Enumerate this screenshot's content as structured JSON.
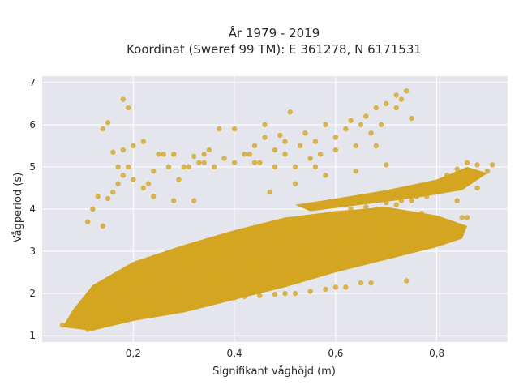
{
  "chart_data": {
    "type": "scatter",
    "title_line1": "År 1979 - 2019",
    "title_line2": "Koordinat (Sweref 99 TM): E 361278, N 6171531",
    "xlabel": "Signifikant våghöjd (m)",
    "ylabel": "Vågperiod (s)",
    "xlim": [
      0.02,
      0.94
    ],
    "ylim": [
      0.85,
      7.15
    ],
    "xticks": [
      0.2,
      0.4,
      0.6,
      0.8
    ],
    "xtick_labels": [
      "0,2",
      "0,4",
      "0,6",
      "0,8"
    ],
    "yticks": [
      1,
      2,
      3,
      4,
      5,
      6,
      7
    ],
    "ytick_labels": [
      "1",
      "2",
      "3",
      "4",
      "5",
      "6",
      "7"
    ],
    "grid": true,
    "plot_background": "#e5e5ee",
    "point_color": "#d4a520",
    "series": [
      {
        "name": "",
        "points": [
          [
            0.06,
            1.25
          ],
          [
            0.08,
            1.4
          ],
          [
            0.09,
            1.55
          ],
          [
            0.1,
            1.2
          ],
          [
            0.1,
            1.75
          ],
          [
            0.11,
            1.15
          ],
          [
            0.12,
            1.9
          ],
          [
            0.12,
            1.45
          ],
          [
            0.13,
            2.05
          ],
          [
            0.14,
            1.6
          ],
          [
            0.15,
            2.2
          ],
          [
            0.15,
            1.35
          ],
          [
            0.16,
            1.85
          ],
          [
            0.17,
            2.4
          ],
          [
            0.18,
            1.55
          ],
          [
            0.18,
            2.1
          ],
          [
            0.2,
            2.55
          ],
          [
            0.2,
            1.7
          ],
          [
            0.21,
            2.25
          ],
          [
            0.22,
            2.7
          ],
          [
            0.23,
            1.8
          ],
          [
            0.24,
            2.45
          ],
          [
            0.25,
            2.85
          ],
          [
            0.26,
            1.9
          ],
          [
            0.27,
            2.6
          ],
          [
            0.28,
            3.0
          ],
          [
            0.29,
            2.0
          ],
          [
            0.3,
            2.75
          ],
          [
            0.31,
            3.1
          ],
          [
            0.32,
            2.15
          ],
          [
            0.33,
            2.9
          ],
          [
            0.34,
            3.2
          ],
          [
            0.35,
            2.3
          ],
          [
            0.36,
            3.0
          ],
          [
            0.37,
            3.3
          ],
          [
            0.38,
            2.4
          ],
          [
            0.39,
            3.1
          ],
          [
            0.4,
            3.4
          ],
          [
            0.41,
            2.5
          ],
          [
            0.42,
            3.2
          ],
          [
            0.43,
            3.5
          ],
          [
            0.44,
            2.6
          ],
          [
            0.45,
            3.3
          ],
          [
            0.46,
            3.55
          ],
          [
            0.47,
            2.7
          ],
          [
            0.48,
            3.4
          ],
          [
            0.5,
            3.65
          ],
          [
            0.5,
            2.85
          ],
          [
            0.52,
            3.5
          ],
          [
            0.53,
            3.7
          ],
          [
            0.54,
            2.95
          ],
          [
            0.55,
            3.6
          ],
          [
            0.56,
            3.8
          ],
          [
            0.58,
            3.05
          ],
          [
            0.58,
            3.7
          ],
          [
            0.6,
            3.9
          ],
          [
            0.6,
            3.15
          ],
          [
            0.62,
            3.8
          ],
          [
            0.63,
            4.0
          ],
          [
            0.64,
            3.25
          ],
          [
            0.65,
            3.9
          ],
          [
            0.66,
            4.05
          ],
          [
            0.68,
            3.35
          ],
          [
            0.68,
            4.0
          ],
          [
            0.7,
            4.15
          ],
          [
            0.7,
            3.45
          ],
          [
            0.72,
            4.1
          ],
          [
            0.73,
            4.2
          ],
          [
            0.74,
            3.55
          ],
          [
            0.75,
            4.2
          ],
          [
            0.76,
            4.3
          ],
          [
            0.78,
            3.65
          ],
          [
            0.78,
            4.3
          ],
          [
            0.8,
            4.4
          ],
          [
            0.8,
            3.75
          ],
          [
            0.82,
            4.5
          ],
          [
            0.84,
            4.6
          ],
          [
            0.85,
            3.8
          ],
          [
            0.86,
            4.7
          ],
          [
            0.88,
            4.8
          ],
          [
            0.9,
            4.9
          ],
          [
            0.91,
            5.05
          ],
          [
            0.88,
            5.05
          ],
          [
            0.86,
            5.1
          ],
          [
            0.84,
            4.95
          ],
          [
            0.82,
            4.8
          ],
          [
            0.77,
            3.9
          ],
          [
            0.72,
            3.6
          ],
          [
            0.62,
            3.2
          ],
          [
            0.55,
            2.05
          ],
          [
            0.6,
            2.15
          ],
          [
            0.65,
            2.25
          ],
          [
            0.67,
            2.25
          ],
          [
            0.5,
            2.0
          ],
          [
            0.45,
            1.95
          ],
          [
            0.4,
            1.9
          ],
          [
            0.74,
            2.3
          ],
          [
            0.62,
            2.15
          ],
          [
            0.58,
            2.1
          ],
          [
            0.52,
            2.0
          ],
          [
            0.48,
            1.98
          ],
          [
            0.42,
            1.93
          ],
          [
            0.15,
            4.25
          ],
          [
            0.16,
            4.4
          ],
          [
            0.17,
            4.6
          ],
          [
            0.18,
            4.8
          ],
          [
            0.19,
            5.0
          ],
          [
            0.2,
            4.7
          ],
          [
            0.22,
            4.5
          ],
          [
            0.24,
            4.9
          ],
          [
            0.25,
            5.3
          ],
          [
            0.27,
            5.0
          ],
          [
            0.28,
            5.3
          ],
          [
            0.3,
            5.0
          ],
          [
            0.32,
            5.25
          ],
          [
            0.34,
            5.1
          ],
          [
            0.35,
            5.4
          ],
          [
            0.36,
            5.0
          ],
          [
            0.38,
            5.2
          ],
          [
            0.4,
            5.1
          ],
          [
            0.42,
            5.3
          ],
          [
            0.44,
            5.5
          ],
          [
            0.45,
            5.1
          ],
          [
            0.46,
            5.7
          ],
          [
            0.48,
            5.4
          ],
          [
            0.5,
            5.3
          ],
          [
            0.5,
            5.6
          ],
          [
            0.52,
            5.0
          ],
          [
            0.53,
            5.5
          ],
          [
            0.54,
            5.8
          ],
          [
            0.55,
            5.2
          ],
          [
            0.56,
            5.6
          ],
          [
            0.57,
            5.3
          ],
          [
            0.58,
            6.0
          ],
          [
            0.6,
            5.7
          ],
          [
            0.6,
            5.4
          ],
          [
            0.62,
            5.9
          ],
          [
            0.63,
            6.1
          ],
          [
            0.64,
            5.5
          ],
          [
            0.65,
            6.0
          ],
          [
            0.66,
            6.2
          ],
          [
            0.67,
            5.8
          ],
          [
            0.68,
            6.4
          ],
          [
            0.69,
            6.0
          ],
          [
            0.7,
            6.5
          ],
          [
            0.72,
            6.7
          ],
          [
            0.74,
            6.8
          ],
          [
            0.73,
            6.6
          ],
          [
            0.72,
            6.4
          ],
          [
            0.75,
            6.15
          ],
          [
            0.68,
            5.5
          ],
          [
            0.56,
            5.0
          ],
          [
            0.48,
            5.0
          ],
          [
            0.44,
            5.1
          ],
          [
            0.4,
            5.9
          ],
          [
            0.46,
            6.0
          ],
          [
            0.51,
            6.3
          ],
          [
            0.49,
            5.75
          ],
          [
            0.43,
            5.3
          ],
          [
            0.37,
            5.9
          ],
          [
            0.34,
            5.3
          ],
          [
            0.31,
            5.0
          ],
          [
            0.14,
            5.9
          ],
          [
            0.15,
            6.05
          ],
          [
            0.18,
            6.6
          ],
          [
            0.19,
            6.4
          ],
          [
            0.16,
            5.35
          ],
          [
            0.18,
            5.4
          ],
          [
            0.12,
            4.0
          ],
          [
            0.11,
            3.7
          ],
          [
            0.13,
            4.3
          ],
          [
            0.14,
            3.6
          ],
          [
            0.17,
            5.0
          ],
          [
            0.2,
            5.5
          ],
          [
            0.22,
            5.6
          ],
          [
            0.26,
            5.3
          ],
          [
            0.24,
            4.3
          ],
          [
            0.28,
            4.2
          ],
          [
            0.32,
            4.2
          ],
          [
            0.33,
            5.1
          ],
          [
            0.29,
            4.7
          ],
          [
            0.23,
            4.6
          ],
          [
            0.47,
            4.4
          ],
          [
            0.52,
            4.6
          ],
          [
            0.58,
            4.8
          ],
          [
            0.64,
            4.9
          ],
          [
            0.7,
            5.05
          ],
          [
            0.76,
            4.5
          ],
          [
            0.8,
            4.6
          ],
          [
            0.84,
            4.2
          ],
          [
            0.86,
            3.8
          ],
          [
            0.88,
            4.5
          ]
        ]
      }
    ]
  }
}
